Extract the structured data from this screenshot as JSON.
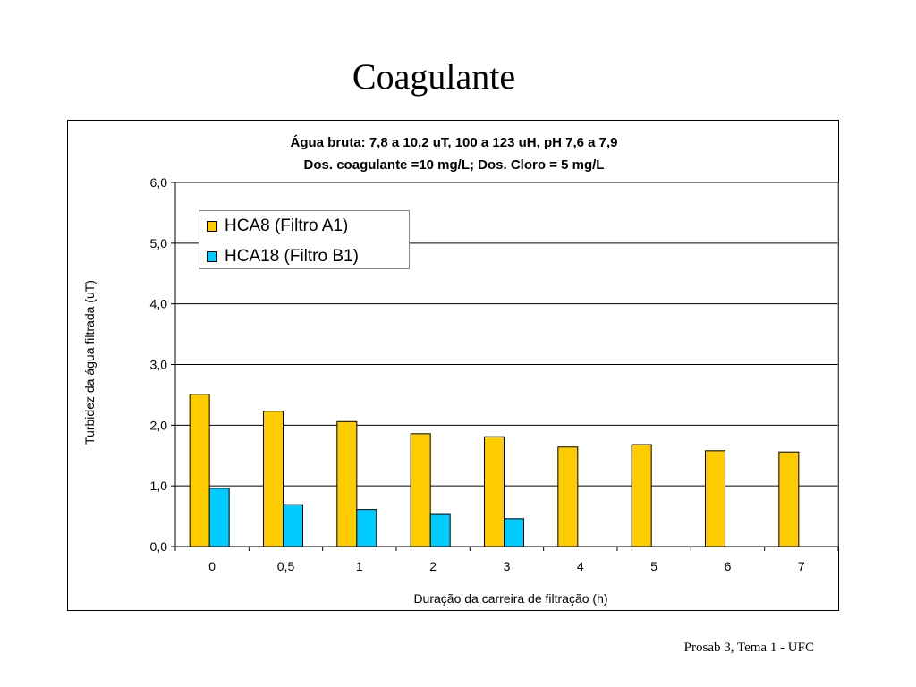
{
  "slide": {
    "title": "Coagulante",
    "footer": "Prosab 3, Tema 1 - UFC"
  },
  "chart_data": {
    "type": "bar",
    "title_line1": "Água bruta: 7,8 a 10,2 uT, 100 a 123 uH, pH 7,6 a 7,9",
    "title_line2": "Dos. coagulante =10 mg/L; Dos. Cloro = 5 mg/L",
    "xlabel": "Duração da carreira de filtração (h)",
    "ylabel": "Turbidez da água filtrada (uT)",
    "categories": [
      "0",
      "0,5",
      "1",
      "2",
      "3",
      "4",
      "5",
      "6",
      "7"
    ],
    "ylim": [
      0,
      6
    ],
    "yticks": [
      "0,0",
      "1,0",
      "2,0",
      "3,0",
      "4,0",
      "5,0",
      "6,0"
    ],
    "grid": true,
    "legend_position": "top-left",
    "series": [
      {
        "name": "HCA8 (Filtro A1)",
        "color": "#FFCC00",
        "values": [
          2.51,
          2.23,
          2.06,
          1.86,
          1.81,
          1.64,
          1.68,
          1.58,
          1.56
        ]
      },
      {
        "name": "HCA18 (Filtro B1)",
        "color": "#00CCFF",
        "values": [
          0.96,
          0.69,
          0.61,
          0.53,
          0.46,
          null,
          null,
          null,
          null
        ]
      }
    ]
  }
}
